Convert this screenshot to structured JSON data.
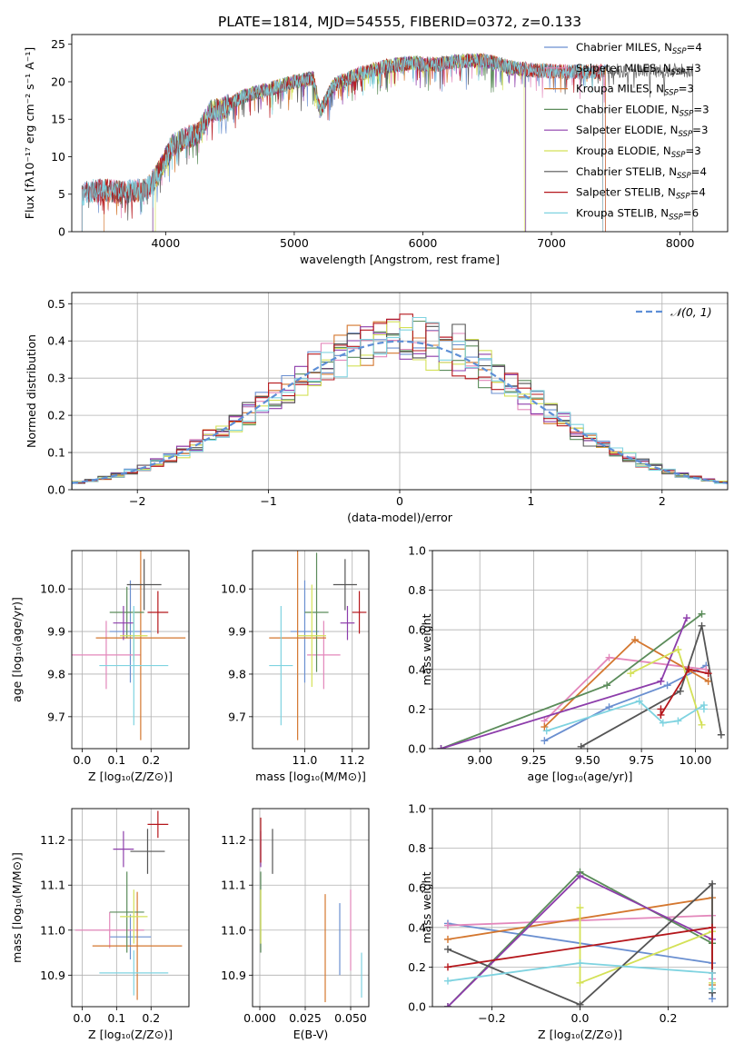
{
  "figure_title": "PLATE=1814, MJD=54555, FIBERID=0372, z=0.133",
  "chart_data": [
    {
      "id": "spectrum",
      "type": "line",
      "xlabel": "wavelength [Angstrom, rest frame]",
      "ylabel": "Flux [fλ10⁻¹⁷ erg cm⁻² s⁻¹ A⁻¹]",
      "xlim": [
        3270,
        8370
      ],
      "ylim": [
        0,
        26.3
      ],
      "xticks": [
        4000,
        5000,
        6000,
        7000,
        8000
      ],
      "yticks": [
        0,
        5,
        10,
        15,
        20,
        25
      ],
      "legend_position": "upper-right",
      "continuum": {
        "x": [
          3350,
          3450,
          3550,
          3650,
          3750,
          3850,
          3950,
          4050,
          4150,
          4250,
          4350,
          4450,
          4600,
          4800,
          5000,
          5150,
          5200,
          5300,
          5500,
          5700,
          5900,
          6100,
          6300,
          6500,
          6700,
          6900,
          7100,
          7300,
          7500
        ],
        "y": [
          5,
          5.5,
          5.5,
          5.2,
          5.5,
          5.5,
          8,
          11.5,
          12.5,
          13,
          16,
          16.5,
          18,
          19,
          20,
          20.5,
          16,
          19.5,
          21,
          22,
          22.5,
          22.3,
          22.8,
          22.8,
          21.8,
          21.5,
          21.3,
          21.3,
          21.5
        ]
      },
      "series": [
        {
          "name": "Chabrier MILES, N_SSP=4",
          "legend": "Chabrier MILES, N",
          "sub": "SSP",
          "suffix": "=4",
          "color": "#6a8fd0",
          "xmin": 3350,
          "xmax": 7420
        },
        {
          "name": "Salpeter MILES, N_SSP=3",
          "legend": "Salpeter MILES, N",
          "sub": "SSP",
          "suffix": "=3",
          "color": "#e387bb",
          "xmin": 3350,
          "xmax": 7420
        },
        {
          "name": "Kroupa MILES, N_SSP=3",
          "legend": "Kroupa MILES, N",
          "sub": "SSP",
          "suffix": "=3",
          "color": "#d4772f",
          "xmin": 3520,
          "xmax": 7420
        },
        {
          "name": "Chabrier ELODIE, N_SSP=3",
          "legend": "Chabrier ELODIE, N",
          "sub": "SSP",
          "suffix": "=3",
          "color": "#5b8c5a",
          "xmin": 3900,
          "xmax": 6800
        },
        {
          "name": "Salpeter ELODIE, N_SSP=3",
          "legend": "Salpeter ELODIE, N",
          "sub": "SSP",
          "suffix": "=3",
          "color": "#8d3dab",
          "xmin": 3900,
          "xmax": 6800
        },
        {
          "name": "Kroupa ELODIE, N_SSP=3",
          "legend": "Kroupa ELODIE, N",
          "sub": "SSP",
          "suffix": "=3",
          "color": "#d4e157",
          "xmin": 3920,
          "xmax": 6790
        },
        {
          "name": "Chabrier STELIB, N_SSP=4",
          "legend": "Chabrier STELIB, N",
          "sub": "SSP",
          "suffix": "=4",
          "color": "#555555",
          "xmin": 3350,
          "xmax": 8100
        },
        {
          "name": "Salpeter STELIB, N_SSP=4",
          "legend": "Salpeter STELIB, N",
          "sub": "SSP",
          "suffix": "=4",
          "color": "#b5171c",
          "xmin": 3350,
          "xmax": 7400
        },
        {
          "name": "Kroupa STELIB, N_SSP=6",
          "legend": "Kroupa STELIB, N",
          "sub": "SSP",
          "suffix": "=6",
          "color": "#7fd3e0",
          "xmin": 3350,
          "xmax": 7400
        }
      ]
    },
    {
      "id": "residuals",
      "type": "step-histogram",
      "xlabel": "(data-model)/error",
      "ylabel": "Normed distribution",
      "xlim": [
        -2.5,
        2.5
      ],
      "ylim": [
        0,
        0.53
      ],
      "xticks": [
        -2,
        -1,
        0,
        1,
        2
      ],
      "xtick_labels": [
        "−2",
        "−1",
        "0",
        "1",
        "2"
      ],
      "yticks": [
        0.0,
        0.1,
        0.2,
        0.3,
        0.4,
        0.5
      ],
      "ytick_labels": [
        "0.0",
        "0.1",
        "0.2",
        "0.3",
        "0.4",
        "0.5"
      ],
      "bin_width": 0.1,
      "reference_label": "𝒩(0, 1)",
      "reference_color": "#5e8fd6"
    },
    {
      "id": "age_vs_Z",
      "type": "errorbar",
      "xlabel": "Z [log₁₀(Z/Z⊙)]",
      "ylabel": "age  [log₁₀(age/yr)]",
      "xlim": [
        -0.03,
        0.31
      ],
      "ylim": [
        9.625,
        10.09
      ],
      "xticks": [
        0.0,
        0.1,
        0.2
      ],
      "xtick_labels": [
        "0.0",
        "0.1",
        "0.2"
      ],
      "yticks": [
        9.7,
        9.8,
        9.9,
        10.0
      ],
      "ytick_labels": [
        "9.7",
        "9.8",
        "9.9",
        "10.0"
      ],
      "points": [
        {
          "color": "#6a8fd0",
          "x": 0.14,
          "xerr": 0.06,
          "y": 9.9,
          "yerr": 0.12
        },
        {
          "color": "#e387bb",
          "x": 0.07,
          "xerr": 0.1,
          "y": 9.845,
          "yerr": 0.08
        },
        {
          "color": "#d4772f",
          "x": 0.17,
          "xerr": 0.13,
          "y": 9.885,
          "yerr": 0.24
        },
        {
          "color": "#5b8c5a",
          "x": 0.13,
          "xerr": 0.05,
          "y": 9.945,
          "yerr": 0.06
        },
        {
          "color": "#8d3dab",
          "x": 0.12,
          "xerr": 0.03,
          "y": 9.92,
          "yerr": 0.04
        },
        {
          "color": "#d4e157",
          "x": 0.15,
          "xerr": 0.04,
          "y": 9.89,
          "yerr": 0.06
        },
        {
          "color": "#555555",
          "x": 0.18,
          "xerr": 0.05,
          "y": 10.01,
          "yerr": 0.06
        },
        {
          "color": "#b5171c",
          "x": 0.22,
          "xerr": 0.03,
          "y": 9.945,
          "yerr": 0.05
        },
        {
          "color": "#7fd3e0",
          "x": 0.15,
          "xerr": 0.1,
          "y": 9.82,
          "yerr": 0.14
        }
      ]
    },
    {
      "id": "age_vs_mass",
      "type": "errorbar",
      "xlabel": "mass [log₁₀(M/M⊙)]",
      "ylabel": "",
      "xlim": [
        10.78,
        11.27
      ],
      "ylim": [
        9.625,
        10.09
      ],
      "xticks": [
        11.0,
        11.2
      ],
      "xtick_labels": [
        "11.0",
        "11.2"
      ],
      "yticks": [
        9.7,
        9.8,
        9.9,
        10.0
      ],
      "ytick_labels": [
        "9.7",
        "9.8",
        "9.9",
        "10.0"
      ],
      "points": [
        {
          "color": "#6a8fd0",
          "x": 11.0,
          "xerr": 0.06,
          "y": 9.9,
          "yerr": 0.12
        },
        {
          "color": "#e387bb",
          "x": 11.08,
          "xerr": 0.07,
          "y": 9.845,
          "yerr": 0.08
        },
        {
          "color": "#d4772f",
          "x": 10.97,
          "xerr": 0.12,
          "y": 9.885,
          "yerr": 0.24
        },
        {
          "color": "#5b8c5a",
          "x": 11.05,
          "xerr": 0.05,
          "y": 9.945,
          "yerr": 0.14
        },
        {
          "color": "#8d3dab",
          "x": 11.18,
          "xerr": 0.03,
          "y": 9.92,
          "yerr": 0.04
        },
        {
          "color": "#d4e157",
          "x": 11.03,
          "xerr": 0.06,
          "y": 9.89,
          "yerr": 0.12
        },
        {
          "color": "#555555",
          "x": 11.17,
          "xerr": 0.05,
          "y": 10.01,
          "yerr": 0.06
        },
        {
          "color": "#b5171c",
          "x": 11.23,
          "xerr": 0.03,
          "y": 9.945,
          "yerr": 0.05
        },
        {
          "color": "#7fd3e0",
          "x": 10.9,
          "xerr": 0.05,
          "y": 9.82,
          "yerr": 0.14
        }
      ]
    },
    {
      "id": "weight_vs_age",
      "type": "line",
      "xlabel": "age  [log₁₀(age/yr)]",
      "ylabel": "mass weight",
      "xlim": [
        8.78,
        10.15
      ],
      "ylim": [
        0,
        1.0
      ],
      "xticks": [
        9.0,
        9.25,
        9.5,
        9.75,
        10.0
      ],
      "xtick_labels": [
        "9.00",
        "9.25",
        "9.50",
        "9.75",
        "10.00"
      ],
      "yticks": [
        0.0,
        0.2,
        0.4,
        0.6,
        0.8,
        1.0
      ],
      "ytick_labels": [
        "0.0",
        "0.2",
        "0.4",
        "0.6",
        "0.8",
        "1.0"
      ],
      "series": [
        {
          "color": "#6a8fd0",
          "x": [
            9.3,
            9.6,
            9.87,
            10.05
          ],
          "y": [
            0.04,
            0.21,
            0.32,
            0.42
          ]
        },
        {
          "color": "#e387bb",
          "x": [
            9.3,
            9.6,
            10.05
          ],
          "y": [
            0.14,
            0.46,
            0.4
          ]
        },
        {
          "color": "#d4772f",
          "x": [
            9.3,
            9.72,
            10.06
          ],
          "y": [
            0.11,
            0.55,
            0.34
          ]
        },
        {
          "color": "#5b8c5a",
          "x": [
            8.82,
            9.59,
            10.03
          ],
          "y": [
            0.0,
            0.32,
            0.68
          ]
        },
        {
          "color": "#8d3dab",
          "x": [
            8.82,
            9.84,
            9.96
          ],
          "y": [
            0.0,
            0.34,
            0.66
          ]
        },
        {
          "color": "#d4e157",
          "x": [
            9.7,
            9.92,
            10.03
          ],
          "y": [
            0.38,
            0.5,
            0.12
          ]
        },
        {
          "color": "#555555",
          "x": [
            9.47,
            9.93,
            10.03,
            10.12
          ],
          "y": [
            0.01,
            0.29,
            0.62,
            0.07
          ]
        },
        {
          "color": "#b5171c",
          "x": [
            9.84,
            9.84,
            9.97,
            10.06
          ],
          "y": [
            0.2,
            0.17,
            0.4,
            0.38
          ]
        },
        {
          "color": "#7fd3e0",
          "x": [
            9.31,
            9.74,
            9.85,
            9.92,
            10.04,
            10.04
          ],
          "y": [
            0.09,
            0.24,
            0.13,
            0.14,
            0.22,
            0.2
          ]
        }
      ]
    },
    {
      "id": "mass_vs_Z",
      "type": "errorbar",
      "xlabel": "Z [log₁₀(Z/Z⊙)]",
      "ylabel": "mass [log₁₀(M/M⊙)]",
      "xlim": [
        -0.03,
        0.31
      ],
      "ylim": [
        10.83,
        11.27
      ],
      "xticks": [
        0.0,
        0.1,
        0.2
      ],
      "xtick_labels": [
        "0.0",
        "0.1",
        "0.2"
      ],
      "yticks": [
        10.9,
        11.0,
        11.1,
        11.2
      ],
      "ytick_labels": [
        "10.9",
        "11.0",
        "11.1",
        "11.2"
      ],
      "points": [
        {
          "color": "#6a8fd0",
          "x": 0.14,
          "xerr": 0.06,
          "y": 10.985,
          "yerr": 0.05
        },
        {
          "color": "#e387bb",
          "x": 0.08,
          "xerr": 0.1,
          "y": 11.0,
          "yerr": 0.04
        },
        {
          "color": "#d4772f",
          "x": 0.16,
          "xerr": 0.13,
          "y": 10.965,
          "yerr": 0.12
        },
        {
          "color": "#5b8c5a",
          "x": 0.13,
          "xerr": 0.05,
          "y": 11.04,
          "yerr": 0.09
        },
        {
          "color": "#8d3dab",
          "x": 0.12,
          "xerr": 0.03,
          "y": 11.18,
          "yerr": 0.04
        },
        {
          "color": "#d4e157",
          "x": 0.15,
          "xerr": 0.04,
          "y": 11.03,
          "yerr": 0.06
        },
        {
          "color": "#555555",
          "x": 0.19,
          "xerr": 0.05,
          "y": 11.175,
          "yerr": 0.05
        },
        {
          "color": "#b5171c",
          "x": 0.22,
          "xerr": 0.03,
          "y": 11.235,
          "yerr": 0.03
        },
        {
          "color": "#7fd3e0",
          "x": 0.15,
          "xerr": 0.1,
          "y": 10.905,
          "yerr": 0.05
        }
      ]
    },
    {
      "id": "mass_vs_ebv",
      "type": "errorbar",
      "xlabel": "E(B-V)",
      "ylabel": "",
      "xlim": [
        -0.004,
        0.06
      ],
      "ylim": [
        10.83,
        11.27
      ],
      "xticks": [
        0.0,
        0.025,
        0.05
      ],
      "xtick_labels": [
        "0.000",
        "0.025",
        "0.050"
      ],
      "yticks": [
        10.9,
        11.0,
        11.1,
        11.2
      ],
      "ytick_labels": [
        "10.9",
        "11.0",
        "11.1",
        "11.2"
      ],
      "points": [
        {
          "color": "#6a8fd0",
          "x": 0.044,
          "xerr": 0,
          "y": 10.98,
          "yerr": 0.08
        },
        {
          "color": "#e387bb",
          "x": 0.05,
          "xerr": 0,
          "y": 11.0,
          "yerr": 0.09
        },
        {
          "color": "#d4772f",
          "x": 0.036,
          "xerr": 0,
          "y": 10.96,
          "yerr": 0.12
        },
        {
          "color": "#5b8c5a",
          "x": 0.0005,
          "xerr": 0,
          "y": 11.04,
          "yerr": 0.09
        },
        {
          "color": "#8d3dab",
          "x": 0.0005,
          "xerr": 0,
          "y": 11.18,
          "yerr": 0.04
        },
        {
          "color": "#d4e157",
          "x": 0.0005,
          "xerr": 0,
          "y": 11.03,
          "yerr": 0.06
        },
        {
          "color": "#555555",
          "x": 0.007,
          "xerr": 0,
          "y": 11.175,
          "yerr": 0.05
        },
        {
          "color": "#b5171c",
          "x": 0.0005,
          "xerr": 0,
          "y": 11.2,
          "yerr": 0.05
        },
        {
          "color": "#7fd3e0",
          "x": 0.056,
          "xerr": 0,
          "y": 10.9,
          "yerr": 0.05
        }
      ]
    },
    {
      "id": "weight_vs_Z",
      "type": "line",
      "xlabel": "Z [log₁₀(Z/Z⊙)]",
      "ylabel": "mass weight",
      "xlim": [
        -0.335,
        0.335
      ],
      "ylim": [
        0,
        1.0
      ],
      "xticks": [
        -0.2,
        0.0,
        0.2
      ],
      "xtick_labels": [
        "−0.2",
        "0.0",
        "0.2"
      ],
      "yticks": [
        0.0,
        0.2,
        0.4,
        0.6,
        0.8,
        1.0
      ],
      "ytick_labels": [
        "0.0",
        "0.2",
        "0.4",
        "0.6",
        "0.8",
        "1.0"
      ],
      "series": [
        {
          "color": "#6a8fd0",
          "x": [
            -0.3,
            0.3,
            0.3
          ],
          "y": [
            0.42,
            0.22,
            0.04
          ]
        },
        {
          "color": "#e387bb",
          "x": [
            -0.3,
            0.3,
            0.3
          ],
          "y": [
            0.41,
            0.46,
            0.14
          ]
        },
        {
          "color": "#d4772f",
          "x": [
            -0.3,
            0.3,
            0.3
          ],
          "y": [
            0.34,
            0.55,
            0.11
          ]
        },
        {
          "color": "#5b8c5a",
          "x": [
            -0.3,
            0.0,
            0.3
          ],
          "y": [
            0.0,
            0.68,
            0.32
          ]
        },
        {
          "color": "#8d3dab",
          "x": [
            -0.3,
            0.0,
            0.3
          ],
          "y": [
            0.0,
            0.66,
            0.34
          ]
        },
        {
          "color": "#d4e157",
          "x": [
            0.0,
            0.0,
            0.3,
            0.3
          ],
          "y": [
            0.5,
            0.12,
            0.38,
            0.12
          ]
        },
        {
          "color": "#555555",
          "x": [
            -0.3,
            0.0,
            0.3,
            0.3
          ],
          "y": [
            0.29,
            0.01,
            0.62,
            0.07
          ]
        },
        {
          "color": "#b5171c",
          "x": [
            -0.3,
            0.3,
            0.3
          ],
          "y": [
            0.2,
            0.4,
            0.17
          ]
        },
        {
          "color": "#7fd3e0",
          "x": [
            -0.3,
            0.0,
            0.3,
            0.3
          ],
          "y": [
            0.13,
            0.22,
            0.17,
            0.09
          ]
        }
      ]
    }
  ]
}
